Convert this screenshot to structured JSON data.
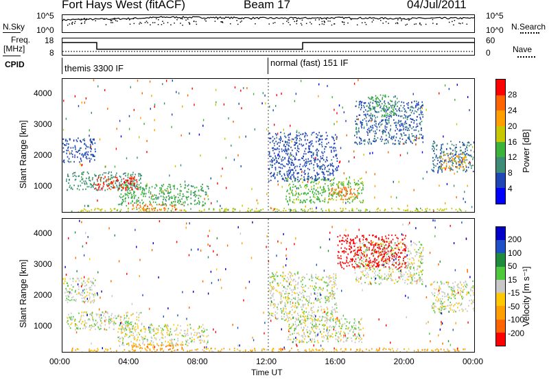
{
  "header": {
    "station": "Fort Hays West (fitACF)",
    "beam": "Beam 17",
    "date": "04/Jul/2011"
  },
  "top_panels": {
    "nsky_label": "N.Sky",
    "nsky_ticks": [
      "10^5",
      "10^0"
    ],
    "nsearch_label": "N.Search",
    "nsearch_ticks": [
      "10^5",
      "10^0"
    ],
    "freq_label_1": "Freq.",
    "freq_label_2": "[MHz]",
    "freq_ticks": [
      "18",
      "8"
    ],
    "nave_label": "Nave",
    "nave_ticks": [
      "60",
      "0"
    ],
    "cpid_label": "CPID",
    "cpid_modes": [
      "themis 3300 IF",
      "normal (fast) 151 IF"
    ],
    "cpid_change_hour": 12.0
  },
  "colors": {
    "power_scale": [
      "#0000ff",
      "#1e46b4",
      "#3c8c78",
      "#3cb43c",
      "#c8c800",
      "#ffa000",
      "#ff6400",
      "#ff0000"
    ],
    "velocity_scale": [
      "#0000c8",
      "#1e50c8",
      "#1e8c3c",
      "#50c83c",
      "#c8c8c8",
      "#ffc800",
      "#ffa000",
      "#ff6400",
      "#ff0000"
    ]
  },
  "chart_data": [
    {
      "type": "line",
      "title": "N.Sky / N.Search",
      "x": [
        0,
        2,
        4,
        6,
        8,
        10,
        12,
        14,
        16,
        18,
        20,
        22,
        24
      ],
      "series": [
        {
          "name": "N.Sky",
          "values": [
            3.6,
            3.8,
            4.0,
            4.4,
            4.3,
            4.2,
            4.1,
            4.1,
            4.2,
            4.1,
            4.0,
            4.1,
            4.1
          ]
        }
      ],
      "ylim": [
        0,
        5
      ]
    },
    {
      "type": "line",
      "title": "Freq.",
      "x": [
        0,
        2.0,
        2.0,
        14.0,
        14.0,
        24
      ],
      "series": [
        {
          "name": "Freq.",
          "values": [
            18,
            18,
            11,
            11,
            18,
            18
          ]
        },
        {
          "name": "Nave",
          "values": [
            8,
            8,
            8,
            8,
            8,
            8
          ]
        }
      ],
      "ylim": [
        8,
        18
      ]
    },
    {
      "type": "heatmap",
      "ylabel": "Slant Range [km]",
      "xlabel": "Time UT",
      "x_ticks": [
        "00:00",
        "04:00",
        "08:00",
        "12:00",
        "16:00",
        "20:00",
        "00:00"
      ],
      "xlim": [
        0,
        24
      ],
      "y_ticks": [
        "1000",
        "2000",
        "3000",
        "4000"
      ],
      "ylim": [
        180,
        4500
      ],
      "colorbar": {
        "label": "Power [dB]",
        "ticks": [
          "4",
          "8",
          "12",
          "16",
          "20",
          "24",
          "28"
        ],
        "range": [
          0,
          30
        ]
      },
      "regions": [
        {
          "t0": 0.0,
          "t1": 1.9,
          "r0": 1800,
          "r1": 2600,
          "value": 6
        },
        {
          "t0": 0.2,
          "t1": 4.6,
          "r0": 900,
          "r1": 1500,
          "value": 10
        },
        {
          "t0": 1.8,
          "t1": 4.4,
          "r0": 900,
          "r1": 1350,
          "value": 27
        },
        {
          "t0": 3.2,
          "t1": 8.5,
          "r0": 400,
          "r1": 1100,
          "value": 12
        },
        {
          "t0": 4.0,
          "t1": 7.0,
          "r0": 250,
          "r1": 450,
          "value": 24
        },
        {
          "t0": 0.5,
          "t1": 23.5,
          "r0": 180,
          "r1": 320,
          "value": 16
        },
        {
          "t0": 13.0,
          "t1": 17.5,
          "r0": 500,
          "r1": 1300,
          "value": 14
        },
        {
          "t0": 15.5,
          "t1": 17.2,
          "r0": 600,
          "r1": 1000,
          "value": 24
        },
        {
          "t0": 12.0,
          "t1": 16.0,
          "r0": 1200,
          "r1": 2800,
          "value": 6
        },
        {
          "t0": 17.0,
          "t1": 21.0,
          "r0": 2400,
          "r1": 3800,
          "value": 7
        },
        {
          "t0": 17.8,
          "t1": 19.5,
          "r0": 3300,
          "r1": 4000,
          "value": 12
        },
        {
          "t0": 21.5,
          "t1": 24.0,
          "r0": 1500,
          "r1": 2500,
          "value": 8
        },
        {
          "t0": 22.0,
          "t1": 23.5,
          "r0": 1600,
          "r1": 2100,
          "value": 20
        }
      ]
    },
    {
      "type": "heatmap",
      "ylabel": "Slant Range [km]",
      "xlabel": "Time UT",
      "x_ticks": [
        "00:00",
        "04:00",
        "08:00",
        "12:00",
        "16:00",
        "20:00",
        "00:00"
      ],
      "xlim": [
        0,
        24
      ],
      "y_ticks": [
        "1000",
        "2000",
        "3000",
        "4000"
      ],
      "ylim": [
        180,
        4500
      ],
      "colorbar": {
        "label": "Velocity [m s⁻¹]",
        "ticks": [
          "200",
          "100",
          "50",
          "15",
          "-15",
          "-50",
          "-100",
          "-200"
        ],
        "range": [
          -250,
          250
        ]
      },
      "regions": [
        {
          "t0": 0.0,
          "t1": 1.9,
          "r0": 1800,
          "r1": 2600,
          "value": 0
        },
        {
          "t0": 0.2,
          "t1": 4.6,
          "r0": 900,
          "r1": 1500,
          "value": 0
        },
        {
          "t0": 3.2,
          "t1": 8.5,
          "r0": 400,
          "r1": 1100,
          "value": 0
        },
        {
          "t0": 4.0,
          "t1": 7.0,
          "r0": 250,
          "r1": 450,
          "value": -60
        },
        {
          "t0": 0.5,
          "t1": 23.5,
          "r0": 180,
          "r1": 320,
          "value": -40
        },
        {
          "t0": 13.0,
          "t1": 17.5,
          "r0": 500,
          "r1": 1300,
          "value": 0
        },
        {
          "t0": 12.0,
          "t1": 16.0,
          "r0": 1200,
          "r1": 2800,
          "value": 0
        },
        {
          "t0": 17.0,
          "t1": 21.0,
          "r0": 2400,
          "r1": 3800,
          "value": 0
        },
        {
          "t0": 16.0,
          "t1": 20.0,
          "r0": 2900,
          "r1": 4000,
          "value": -220
        },
        {
          "t0": 21.5,
          "t1": 24.0,
          "r0": 1500,
          "r1": 2500,
          "value": 0
        }
      ]
    }
  ]
}
